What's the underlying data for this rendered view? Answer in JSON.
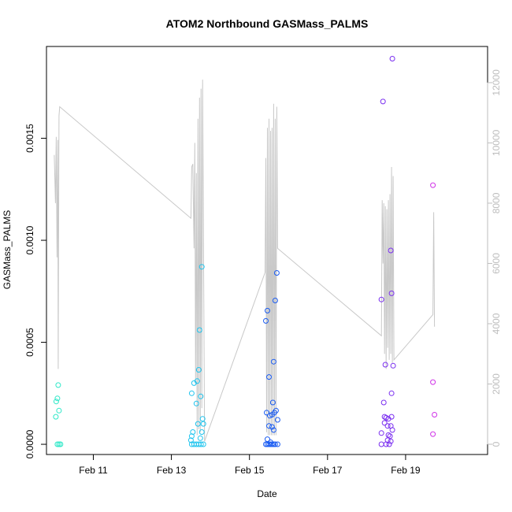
{
  "chart_data": {
    "type": "scatter",
    "title": "ATOM2 Northbound GASMass_PALMS",
    "xlabel": "Date",
    "ylabel": "GASMass_PALMS",
    "xlim": [
      9.8,
      21.1
    ],
    "ylim": [
      -5e-05,
      0.00195
    ],
    "y2lim": [
      -340,
      13200
    ],
    "x_ticks": [
      {
        "value": 11,
        "label": "Feb 11"
      },
      {
        "value": 13,
        "label": "Feb 13"
      },
      {
        "value": 15,
        "label": "Feb 15"
      },
      {
        "value": 17,
        "label": "Feb 17"
      },
      {
        "value": 19,
        "label": "Feb 19"
      }
    ],
    "y_ticks": [
      {
        "value": 0.0,
        "label": "0.0000"
      },
      {
        "value": 0.0005,
        "label": "0.0005"
      },
      {
        "value": 0.001,
        "label": "0.0010"
      },
      {
        "value": 0.0015,
        "label": "0.0015"
      }
    ],
    "y2_ticks": [
      {
        "value": 0,
        "label": "0"
      },
      {
        "value": 2000,
        "label": "2000"
      },
      {
        "value": 4000,
        "label": "4000"
      },
      {
        "value": 6000,
        "label": "6000"
      },
      {
        "value": 8000,
        "label": "8000"
      },
      {
        "value": 10000,
        "label": "10000"
      },
      {
        "value": 12000,
        "label": "12000"
      }
    ],
    "scatter_points": [
      {
        "x": 10.05,
        "y": 0.00021,
        "color": "#2ee8c8"
      },
      {
        "x": 10.08,
        "y": 0.000225,
        "color": "#2ee8c8"
      },
      {
        "x": 10.04,
        "y": 0.000135,
        "color": "#2ee8c8"
      },
      {
        "x": 10.1,
        "y": 0.00029,
        "color": "#2ee8c8"
      },
      {
        "x": 10.12,
        "y": 0.000165,
        "color": "#2ee8c8"
      },
      {
        "x": 10.08,
        "y": 0.0,
        "color": "#2ee8c8"
      },
      {
        "x": 10.12,
        "y": 0.0,
        "color": "#2ee8c8"
      },
      {
        "x": 10.16,
        "y": 0.0,
        "color": "#2ee8c8"
      },
      {
        "x": 13.52,
        "y": 0.00025,
        "color": "#1ec4ee"
      },
      {
        "x": 13.58,
        "y": 0.0003,
        "color": "#1ec4ee"
      },
      {
        "x": 13.66,
        "y": 0.00031,
        "color": "#1ec4ee"
      },
      {
        "x": 13.7,
        "y": 0.000365,
        "color": "#1ec4ee"
      },
      {
        "x": 13.72,
        "y": 0.00056,
        "color": "#1ec4ee"
      },
      {
        "x": 13.78,
        "y": 0.00087,
        "color": "#1ec4ee"
      },
      {
        "x": 13.64,
        "y": 0.0002,
        "color": "#1ec4ee"
      },
      {
        "x": 13.75,
        "y": 0.000235,
        "color": "#1ec4ee"
      },
      {
        "x": 13.68,
        "y": 0.0001,
        "color": "#1ec4ee"
      },
      {
        "x": 13.8,
        "y": 0.000125,
        "color": "#1ec4ee"
      },
      {
        "x": 13.82,
        "y": 0.0001,
        "color": "#1ec4ee"
      },
      {
        "x": 13.55,
        "y": 6e-05,
        "color": "#1ec4ee"
      },
      {
        "x": 13.52,
        "y": 4e-05,
        "color": "#1ec4ee"
      },
      {
        "x": 13.5,
        "y": 2e-05,
        "color": "#1ec4ee"
      },
      {
        "x": 13.78,
        "y": 6e-05,
        "color": "#1ec4ee"
      },
      {
        "x": 13.74,
        "y": 3e-05,
        "color": "#1ec4ee"
      },
      {
        "x": 13.52,
        "y": 0.0,
        "color": "#1ec4ee"
      },
      {
        "x": 13.58,
        "y": 0.0,
        "color": "#1ec4ee"
      },
      {
        "x": 13.64,
        "y": 0.0,
        "color": "#1ec4ee"
      },
      {
        "x": 13.7,
        "y": 0.0,
        "color": "#1ec4ee"
      },
      {
        "x": 13.76,
        "y": 0.0,
        "color": "#1ec4ee"
      },
      {
        "x": 13.82,
        "y": 0.0,
        "color": "#1ec4ee"
      },
      {
        "x": 15.42,
        "y": 0.000605,
        "color": "#1a5cf2"
      },
      {
        "x": 15.46,
        "y": 0.000655,
        "color": "#1a5cf2"
      },
      {
        "x": 15.66,
        "y": 0.000705,
        "color": "#1a5cf2"
      },
      {
        "x": 15.7,
        "y": 0.00084,
        "color": "#1a5cf2"
      },
      {
        "x": 15.62,
        "y": 0.000405,
        "color": "#1a5cf2"
      },
      {
        "x": 15.5,
        "y": 0.00033,
        "color": "#1a5cf2"
      },
      {
        "x": 15.6,
        "y": 0.000205,
        "color": "#1a5cf2"
      },
      {
        "x": 15.44,
        "y": 0.000155,
        "color": "#1a5cf2"
      },
      {
        "x": 15.52,
        "y": 0.00014,
        "color": "#1a5cf2"
      },
      {
        "x": 15.58,
        "y": 0.000145,
        "color": "#1a5cf2"
      },
      {
        "x": 15.64,
        "y": 0.000155,
        "color": "#1a5cf2"
      },
      {
        "x": 15.68,
        "y": 0.000165,
        "color": "#1a5cf2"
      },
      {
        "x": 15.72,
        "y": 0.00012,
        "color": "#1a5cf2"
      },
      {
        "x": 15.5,
        "y": 9e-05,
        "color": "#1a5cf2"
      },
      {
        "x": 15.58,
        "y": 8.5e-05,
        "color": "#1a5cf2"
      },
      {
        "x": 15.62,
        "y": 7e-05,
        "color": "#1a5cf2"
      },
      {
        "x": 15.46,
        "y": 2.5e-05,
        "color": "#1a5cf2"
      },
      {
        "x": 15.54,
        "y": 1e-05,
        "color": "#1a5cf2"
      },
      {
        "x": 15.42,
        "y": 0.0,
        "color": "#1a5cf2"
      },
      {
        "x": 15.46,
        "y": 0.0,
        "color": "#1a5cf2"
      },
      {
        "x": 15.5,
        "y": 0.0,
        "color": "#1a5cf2"
      },
      {
        "x": 15.54,
        "y": 0.0,
        "color": "#1a5cf2"
      },
      {
        "x": 15.58,
        "y": 0.0,
        "color": "#1a5cf2"
      },
      {
        "x": 15.62,
        "y": 0.0,
        "color": "#1a5cf2"
      },
      {
        "x": 15.66,
        "y": 0.0,
        "color": "#1a5cf2"
      },
      {
        "x": 15.72,
        "y": 0.0,
        "color": "#1a5cf2"
      },
      {
        "x": 18.42,
        "y": 0.00168,
        "color": "#7a2ef0"
      },
      {
        "x": 18.66,
        "y": 0.00189,
        "color": "#7a2ef0"
      },
      {
        "x": 18.62,
        "y": 0.00095,
        "color": "#7a2ef0"
      },
      {
        "x": 18.38,
        "y": 0.00071,
        "color": "#7a2ef0"
      },
      {
        "x": 18.64,
        "y": 0.00074,
        "color": "#7a2ef0"
      },
      {
        "x": 18.48,
        "y": 0.00039,
        "color": "#7a2ef0"
      },
      {
        "x": 18.68,
        "y": 0.000385,
        "color": "#7a2ef0"
      },
      {
        "x": 18.64,
        "y": 0.00025,
        "color": "#7a2ef0"
      },
      {
        "x": 18.44,
        "y": 0.000205,
        "color": "#7a2ef0"
      },
      {
        "x": 18.46,
        "y": 0.000135,
        "color": "#7a2ef0"
      },
      {
        "x": 18.5,
        "y": 0.00013,
        "color": "#7a2ef0"
      },
      {
        "x": 18.56,
        "y": 0.000125,
        "color": "#7a2ef0"
      },
      {
        "x": 18.64,
        "y": 0.000135,
        "color": "#7a2ef0"
      },
      {
        "x": 18.46,
        "y": 0.000105,
        "color": "#7a2ef0"
      },
      {
        "x": 18.54,
        "y": 9e-05,
        "color": "#7a2ef0"
      },
      {
        "x": 18.62,
        "y": 9e-05,
        "color": "#7a2ef0"
      },
      {
        "x": 18.66,
        "y": 7e-05,
        "color": "#7a2ef0"
      },
      {
        "x": 18.38,
        "y": 5.5e-05,
        "color": "#7a2ef0"
      },
      {
        "x": 18.56,
        "y": 4.5e-05,
        "color": "#7a2ef0"
      },
      {
        "x": 18.6,
        "y": 4e-05,
        "color": "#7a2ef0"
      },
      {
        "x": 18.54,
        "y": 2e-05,
        "color": "#7a2ef0"
      },
      {
        "x": 18.62,
        "y": 1.5e-05,
        "color": "#7a2ef0"
      },
      {
        "x": 18.38,
        "y": 0.0,
        "color": "#7a2ef0"
      },
      {
        "x": 18.5,
        "y": 0.0,
        "color": "#7a2ef0"
      },
      {
        "x": 18.58,
        "y": 0.0,
        "color": "#7a2ef0"
      },
      {
        "x": 19.7,
        "y": 0.00127,
        "color": "#d033e8"
      },
      {
        "x": 19.7,
        "y": 0.000305,
        "color": "#d033e8"
      },
      {
        "x": 19.74,
        "y": 0.000145,
        "color": "#d033e8"
      },
      {
        "x": 19.7,
        "y": 5e-05,
        "color": "#d033e8"
      }
    ],
    "line_series": {
      "name": "secondary axis trace",
      "color": "#c8c8c8",
      "axis": "right",
      "points": [
        [
          10.0,
          9600
        ],
        [
          10.03,
          8000
        ],
        [
          10.05,
          10200
        ],
        [
          10.07,
          6200
        ],
        [
          10.09,
          10100
        ],
        [
          10.1,
          2500
        ],
        [
          10.12,
          10900
        ],
        [
          10.14,
          11200
        ],
        [
          13.5,
          7500
        ],
        [
          13.52,
          9200
        ],
        [
          13.55,
          9300
        ],
        [
          13.58,
          6500
        ],
        [
          13.6,
          10000
        ],
        [
          13.62,
          2000
        ],
        [
          13.64,
          9000
        ],
        [
          13.66,
          300
        ],
        [
          13.68,
          10800
        ],
        [
          13.7,
          500
        ],
        [
          13.72,
          11500
        ],
        [
          13.74,
          400
        ],
        [
          13.76,
          11800
        ],
        [
          13.78,
          1200
        ],
        [
          13.8,
          12100
        ],
        [
          13.85,
          100
        ],
        [
          15.4,
          5700
        ],
        [
          15.42,
          9500
        ],
        [
          15.44,
          400
        ],
        [
          15.46,
          10500
        ],
        [
          15.48,
          300
        ],
        [
          15.5,
          10800
        ],
        [
          15.52,
          300
        ],
        [
          15.54,
          10400
        ],
        [
          15.56,
          300
        ],
        [
          15.58,
          10500
        ],
        [
          15.6,
          300
        ],
        [
          15.62,
          11300
        ],
        [
          15.64,
          300
        ],
        [
          15.66,
          10800
        ],
        [
          15.68,
          300
        ],
        [
          15.7,
          11200
        ],
        [
          15.72,
          6500
        ],
        [
          18.38,
          3600
        ],
        [
          18.4,
          8100
        ],
        [
          18.42,
          6000
        ],
        [
          18.44,
          8000
        ],
        [
          18.46,
          3000
        ],
        [
          18.48,
          7900
        ],
        [
          18.5,
          2500
        ],
        [
          18.52,
          7800
        ],
        [
          18.54,
          3200
        ],
        [
          18.56,
          8100
        ],
        [
          18.58,
          2800
        ],
        [
          18.6,
          8300
        ],
        [
          18.62,
          3000
        ],
        [
          18.64,
          9200
        ],
        [
          18.66,
          2700
        ],
        [
          18.68,
          8900
        ],
        [
          18.7,
          2800
        ],
        [
          19.7,
          4300
        ],
        [
          19.72,
          7700
        ],
        [
          19.74,
          3900
        ]
      ]
    },
    "colors": {
      "axis": "#000000",
      "right_axis": "#bdbdbd",
      "line": "#c8c8c8"
    }
  }
}
